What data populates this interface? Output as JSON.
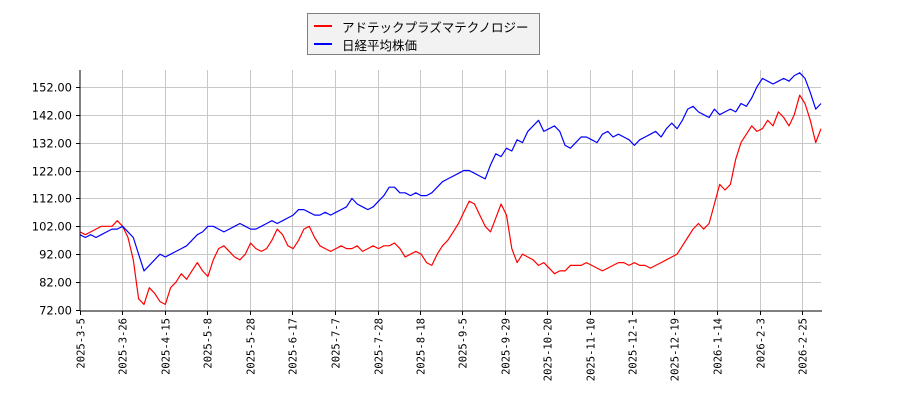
{
  "legend": {
    "items": [
      {
        "label": "アドテックプラズマテクノロジー",
        "color": "#ff0000"
      },
      {
        "label": "日経平均株価",
        "color": "#0000ff"
      }
    ]
  },
  "chart_data": {
    "type": "line",
    "title": "",
    "xlabel": "",
    "ylabel": "",
    "ylim": [
      72,
      158
    ],
    "yticks": [
      "72.00",
      "82.00",
      "92.00",
      "102.00",
      "112.00",
      "122.00",
      "132.00",
      "142.00",
      "152.00"
    ],
    "xticks": [
      "2025-3-5",
      "2025-3-26",
      "2025-4-15",
      "2025-5-8",
      "2025-5-28",
      "2025-6-17",
      "2025-7-7",
      "2025-7-28",
      "2025-8-18",
      "2025-9-5",
      "2025-9-29",
      "2025-10-20",
      "2025-11-10",
      "2025-12-1",
      "2025-12-19",
      "2026-1-14",
      "2026-2-3",
      "2026-2-25"
    ],
    "grid": true,
    "legend_position": "top-center",
    "series": [
      {
        "name": "アドテックプラズマテクノロジー",
        "color": "#ff0000",
        "values": [
          100,
          99,
          100,
          101,
          102,
          102,
          102,
          104,
          102,
          98,
          90,
          76,
          74,
          80,
          78,
          75,
          74,
          80,
          82,
          85,
          83,
          86,
          89,
          86,
          84,
          90,
          94,
          95,
          93,
          91,
          90,
          92,
          96,
          94,
          93,
          94,
          97,
          101,
          99,
          95,
          94,
          97,
          101,
          102,
          98,
          95,
          94,
          93,
          94,
          95,
          94,
          94,
          95,
          93,
          94,
          95,
          94,
          95,
          95,
          96,
          94,
          91,
          92,
          93,
          92,
          89,
          88,
          92,
          95,
          97,
          100,
          103,
          107,
          111,
          110,
          106,
          102,
          100,
          105,
          110,
          106,
          94,
          89,
          92,
          91,
          90,
          88,
          89,
          87,
          85,
          86,
          86,
          88,
          88,
          88,
          89,
          88,
          87,
          86,
          87,
          88,
          89,
          89,
          88,
          89,
          88,
          88,
          87,
          88,
          89,
          90,
          91,
          92,
          95,
          98,
          101,
          103,
          101,
          103,
          110,
          117,
          115,
          117,
          126,
          132,
          135,
          138,
          136,
          137,
          140,
          138,
          143,
          141,
          138,
          142,
          149,
          146,
          140,
          132,
          137
        ]
      },
      {
        "name": "日経平均株価",
        "color": "#0000ff",
        "values": [
          99,
          98,
          99,
          98,
          99,
          100,
          101,
          101,
          102,
          100,
          98,
          92,
          86,
          88,
          90,
          92,
          91,
          92,
          93,
          94,
          95,
          97,
          99,
          100,
          102,
          102,
          101,
          100,
          101,
          102,
          103,
          102,
          101,
          101,
          102,
          103,
          104,
          103,
          104,
          105,
          106,
          108,
          108,
          107,
          106,
          106,
          107,
          106,
          107,
          108,
          109,
          112,
          110,
          109,
          108,
          109,
          111,
          113,
          116,
          116,
          114,
          114,
          113,
          114,
          113,
          113,
          114,
          116,
          118,
          119,
          120,
          121,
          122,
          122,
          121,
          120,
          119,
          124,
          128,
          127,
          130,
          129,
          133,
          132,
          136,
          138,
          140,
          136,
          137,
          138,
          136,
          131,
          130,
          132,
          134,
          134,
          133,
          132,
          135,
          136,
          134,
          135,
          134,
          133,
          131,
          133,
          134,
          135,
          136,
          134,
          137,
          139,
          137,
          140,
          144,
          145,
          143,
          142,
          141,
          144,
          142,
          143,
          144,
          143,
          146,
          145,
          148,
          152,
          155,
          154,
          153,
          154,
          155,
          154,
          156,
          157,
          155,
          150,
          144,
          146
        ]
      }
    ]
  }
}
